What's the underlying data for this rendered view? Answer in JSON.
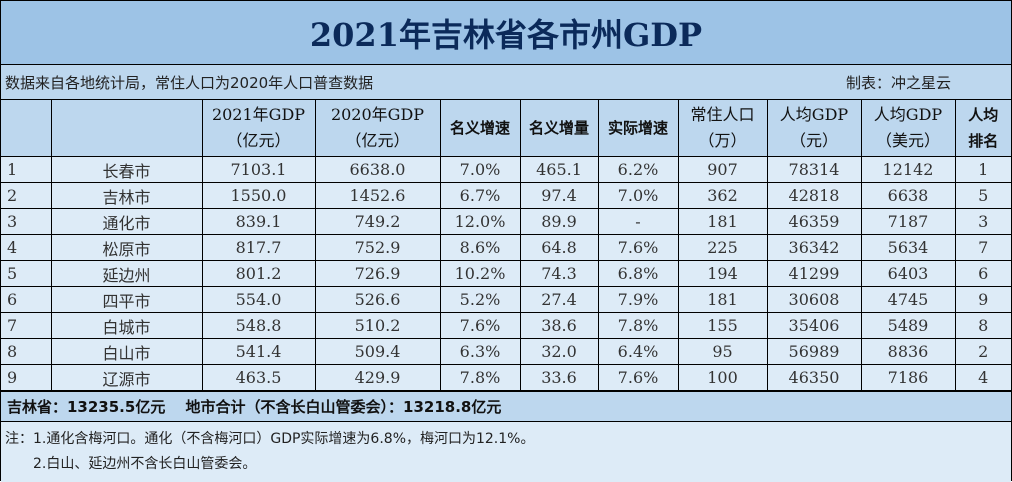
{
  "title": "2021年吉林省各市州GDP",
  "source": "数据来自各地统计局，常住人口为2020年人口普查数据",
  "author": "制表：冲之星云",
  "headers": [
    [
      "",
      ""
    ],
    [
      "",
      ""
    ],
    [
      "2021年GDP",
      "（亿元）"
    ],
    [
      "2020年GDP",
      "（亿元）"
    ],
    [
      "名义增速",
      ""
    ],
    [
      "名义增量",
      ""
    ],
    [
      "实际增速",
      ""
    ],
    [
      "常住人口",
      "（万）"
    ],
    [
      "人均GDP",
      "（元）"
    ],
    [
      "人均GDP",
      "（美元）"
    ],
    [
      "人均",
      "排名"
    ]
  ],
  "rows": [
    [
      "1",
      "长春市",
      "7103.1",
      "6638.0",
      "7.0%",
      "465.1",
      "6.2%",
      "907",
      "78314",
      "12142",
      "1"
    ],
    [
      "2",
      "吉林市",
      "1550.0",
      "1452.6",
      "6.7%",
      "97.4",
      "7.0%",
      "362",
      "42818",
      "6638",
      "5"
    ],
    [
      "3",
      "通化市",
      "839.1",
      "749.2",
      "12.0%",
      "89.9",
      "-",
      "181",
      "46359",
      "7187",
      "3"
    ],
    [
      "4",
      "松原市",
      "817.7",
      "752.9",
      "8.6%",
      "64.8",
      "7.6%",
      "225",
      "36342",
      "5634",
      "7"
    ],
    [
      "5",
      "延边州",
      "801.2",
      "726.9",
      "10.2%",
      "74.3",
      "6.8%",
      "194",
      "41299",
      "6403",
      "6"
    ],
    [
      "6",
      "四平市",
      "554.0",
      "526.6",
      "5.2%",
      "27.4",
      "7.9%",
      "181",
      "30608",
      "4745",
      "9"
    ],
    [
      "7",
      "白城市",
      "548.8",
      "510.2",
      "7.6%",
      "38.6",
      "7.8%",
      "155",
      "35406",
      "5489",
      "8"
    ],
    [
      "8",
      "白山市",
      "541.4",
      "509.4",
      "6.3%",
      "32.0",
      "6.4%",
      "95",
      "56989",
      "8836",
      "2"
    ],
    [
      "9",
      "辽源市",
      "463.5",
      "429.9",
      "7.8%",
      "33.6",
      "7.6%",
      "100",
      "46350",
      "7186",
      "4"
    ]
  ],
  "summary": "吉林省：13235.5亿元　 地市合计（不含长白山管委会）：13218.8亿元",
  "notes": [
    "注：1.通化含梅河口。通化（不含梅河口）GDP实际增速为6.8%，梅河口为12.1%。",
    "2.白山、延边州不含长白山管委会。"
  ]
}
